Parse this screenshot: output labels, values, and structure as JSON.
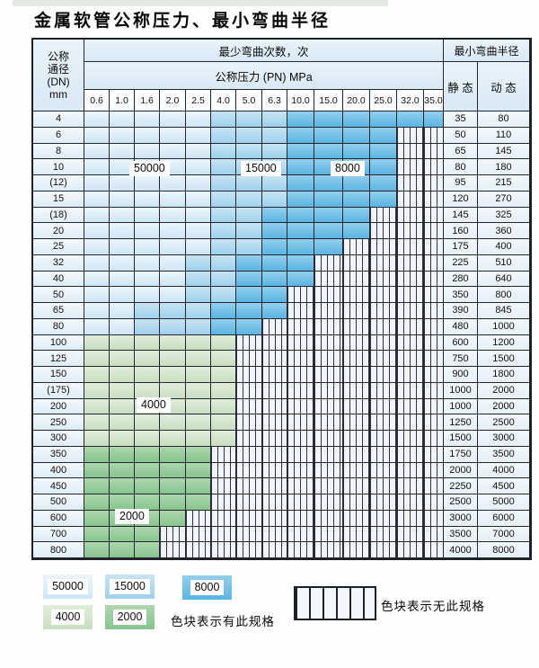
{
  "page": {
    "title": "金属软管公称压力、最小弯曲半径"
  },
  "table": {
    "header": {
      "dn_lines": [
        "公称",
        "通径",
        "(DN)",
        "mm"
      ],
      "cycles_label": "最少弯曲次数，次",
      "pressure_label": "公称压力 (PN) MPa",
      "radius_label": "最小弯曲半径",
      "static_label": "静 态",
      "dynamic_label": "动 态"
    },
    "columns": [
      "0.6",
      "1.0",
      "1.6",
      "2.0",
      "2.5",
      "4.0",
      "5.0",
      "6.3",
      "10.0",
      "15.0",
      "20.0",
      "25.0",
      "32.0",
      "35.0"
    ],
    "cell_type_legend": "L=50000 cycles, M=15000 cycles, D=8000 cycles, G=4000 cycles, g=2000 cycles, X=no specification (hatched)",
    "rows": [
      {
        "dn": "4",
        "types": "LLLLLMMMDDDDDD",
        "static": "35",
        "dynamic": "80"
      },
      {
        "dn": "6",
        "types": "LLLLLMMMDDDDXX",
        "static": "50",
        "dynamic": "110"
      },
      {
        "dn": "8",
        "types": "LLLLLMMMDDDDXX",
        "static": "65",
        "dynamic": "145"
      },
      {
        "dn": "10",
        "types": "LLLLLMMMDDDDXX",
        "static": "80",
        "dynamic": "180"
      },
      {
        "dn": "(12)",
        "types": "LLLLLMMMDDDDXX",
        "static": "95",
        "dynamic": "215"
      },
      {
        "dn": "15",
        "types": "LLLLLMMMDDDDXX",
        "static": "120",
        "dynamic": "270"
      },
      {
        "dn": "(18)",
        "types": "LLLLLMMDDDDXXX",
        "static": "145",
        "dynamic": "325"
      },
      {
        "dn": "20",
        "types": "LLLLLMMDDDDXXX",
        "static": "160",
        "dynamic": "360"
      },
      {
        "dn": "25",
        "types": "LLLLLMMDDDXXXX",
        "static": "175",
        "dynamic": "400"
      },
      {
        "dn": "32",
        "types": "LLLLMMDDDXXXXX",
        "static": "225",
        "dynamic": "510"
      },
      {
        "dn": "40",
        "types": "LLLLMMDDDXXXXX",
        "static": "280",
        "dynamic": "640"
      },
      {
        "dn": "50",
        "types": "LLLLMMDDXXXXXX",
        "static": "350",
        "dynamic": "800"
      },
      {
        "dn": "65",
        "types": "LLMMMDDDXXXXXX",
        "static": "390",
        "dynamic": "845"
      },
      {
        "dn": "80",
        "types": "LLMMMDDXXXXXXX",
        "static": "480",
        "dynamic": "1000"
      },
      {
        "dn": "100",
        "types": "GGGGGGXXXXXXXX",
        "static": "600",
        "dynamic": "1200"
      },
      {
        "dn": "125",
        "types": "GGGGGGXXXXXXXX",
        "static": "750",
        "dynamic": "1500"
      },
      {
        "dn": "150",
        "types": "GGGGGGXXXXXXXX",
        "static": "900",
        "dynamic": "1800"
      },
      {
        "dn": "(175)",
        "types": "GGGGGGXXXXXXXX",
        "static": "1000",
        "dynamic": "2000"
      },
      {
        "dn": "200",
        "types": "GGGGGGXXXXXXXX",
        "static": "1000",
        "dynamic": "2000"
      },
      {
        "dn": "250",
        "types": "GGGGGGXXXXXXXX",
        "static": "1250",
        "dynamic": "2500"
      },
      {
        "dn": "300",
        "types": "GGGGGGXXXXXXXX",
        "static": "1500",
        "dynamic": "3000"
      },
      {
        "dn": "350",
        "types": "gggggXXXXXXXXX",
        "static": "1750",
        "dynamic": "3500"
      },
      {
        "dn": "400",
        "types": "gggggXXXXXXXXX",
        "static": "2000",
        "dynamic": "4000"
      },
      {
        "dn": "450",
        "types": "gggggXXXXXXXXX",
        "static": "2250",
        "dynamic": "4500"
      },
      {
        "dn": "500",
        "types": "gggggXXXXXXXXX",
        "static": "2500",
        "dynamic": "5000"
      },
      {
        "dn": "600",
        "types": "ggggXXXXXXXXXX",
        "static": "3000",
        "dynamic": "6000"
      },
      {
        "dn": "700",
        "types": "gggXXXXXXXXXXX",
        "static": "3500",
        "dynamic": "7000"
      },
      {
        "dn": "800",
        "types": "gggXXXXXXXXXXX",
        "static": "4000",
        "dynamic": "8000"
      }
    ],
    "region_labels": [
      {
        "value": "50000"
      },
      {
        "value": "15000"
      },
      {
        "value": "8000"
      },
      {
        "value": "4000"
      },
      {
        "value": "2000"
      }
    ]
  },
  "legend": {
    "swatches": [
      {
        "label": "50000",
        "type": "L"
      },
      {
        "label": "15000",
        "type": "M"
      },
      {
        "label": "8000",
        "type": "D"
      },
      {
        "label": "4000",
        "type": "G"
      },
      {
        "label": "2000",
        "type": "g"
      }
    ],
    "has_spec_text": "色块表示有此规格",
    "no_spec_text": "色块表示无此规格"
  },
  "colors": {
    "blue_50000": "#cde6f5",
    "blue_15000": "#9ed1ec",
    "blue_8000": "#5ab5e2",
    "green_4000": "#c8dec1",
    "green_2000": "#86c48c",
    "hatch_bg": "#eef4fa",
    "grid_line": "#23272d",
    "header_bg": "#e0edf7"
  }
}
